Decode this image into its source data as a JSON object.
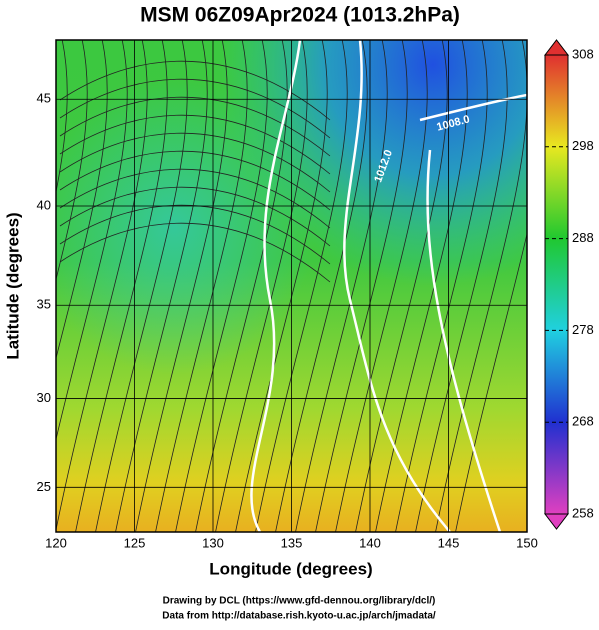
{
  "chart_data": {
    "type": "contour",
    "title": "MSM 06Z09Apr2024 (1013.2hPa)",
    "x_label": "Longitude (degrees)",
    "y_label": "Latitude  (degrees)",
    "xlim": [
      120,
      150
    ],
    "ylim": [
      22.4,
      47.6
    ],
    "xticks": [
      120,
      125,
      130,
      135,
      140,
      145,
      150
    ],
    "yticks": [
      25,
      30,
      35,
      40,
      45
    ],
    "grid": true,
    "projection": "mercator",
    "annotations": [
      "1008.0",
      "1012.0"
    ],
    "colorbar": {
      "lim": [
        258,
        308
      ],
      "ticks": [
        258,
        268,
        278,
        288,
        298,
        308
      ],
      "colors": [
        "#e040c0",
        "#2030d0",
        "#20d0e0",
        "#20c830",
        "#e8e820",
        "#e03030"
      ]
    },
    "footer": [
      "Drawing by DCL (https://www.gfd-dennou.org/library/dcl/)",
      "Data from http://database.rish.kyoto-u.ac.jp/arch/jmadata/"
    ]
  }
}
